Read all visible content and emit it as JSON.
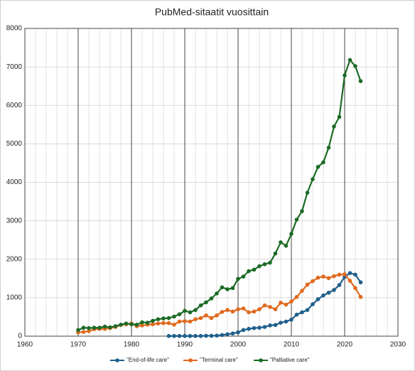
{
  "chart_data": {
    "type": "line",
    "title": "PubMed-sitaatit vuosittain",
    "xlim": [
      1960,
      2030
    ],
    "xticks": [
      1960,
      1970,
      1980,
      1990,
      2000,
      2010,
      2020,
      2030
    ],
    "ylim": [
      0,
      8000
    ],
    "yticks": [
      0,
      1000,
      2000,
      3000,
      4000,
      5000,
      6000,
      7000,
      8000
    ],
    "grid": true,
    "x_minor_grid_step": 2,
    "legend": "bottom",
    "series": [
      {
        "name": "\"End-of-life care\"",
        "color": "#1f5f8b",
        "x": [
          1987,
          1988,
          1989,
          1990,
          1991,
          1992,
          1993,
          1994,
          1995,
          1996,
          1997,
          1998,
          1999,
          2000,
          2001,
          2002,
          2003,
          2004,
          2005,
          2006,
          2007,
          2008,
          2009,
          2010,
          2011,
          2012,
          2013,
          2014,
          2015,
          2016,
          2017,
          2018,
          2019,
          2020,
          2021,
          2022,
          2023
        ],
        "values": [
          5,
          5,
          5,
          5,
          5,
          5,
          5,
          10,
          10,
          15,
          30,
          50,
          70,
          100,
          160,
          190,
          210,
          220,
          240,
          280,
          290,
          350,
          380,
          430,
          560,
          620,
          680,
          830,
          960,
          1060,
          1130,
          1200,
          1330,
          1540,
          1640,
          1600,
          1400
        ]
      },
      {
        "name": "\"Terminal care\"",
        "color": "#e0691c",
        "x": [
          1970,
          1971,
          1972,
          1973,
          1974,
          1975,
          1976,
          1977,
          1978,
          1979,
          1980,
          1981,
          1982,
          1983,
          1984,
          1985,
          1986,
          1987,
          1988,
          1989,
          1990,
          1991,
          1992,
          1993,
          1994,
          1995,
          1996,
          1997,
          1998,
          1999,
          2000,
          2001,
          2002,
          2003,
          2004,
          2005,
          2006,
          2007,
          2008,
          2009,
          2010,
          2011,
          2012,
          2013,
          2014,
          2015,
          2016,
          2017,
          2018,
          2019,
          2020,
          2021,
          2022,
          2023
        ],
        "values": [
          100,
          110,
          130,
          180,
          190,
          190,
          210,
          240,
          290,
          310,
          330,
          260,
          280,
          300,
          310,
          330,
          340,
          340,
          300,
          380,
          390,
          380,
          440,
          470,
          540,
          470,
          540,
          630,
          680,
          640,
          700,
          720,
          620,
          640,
          700,
          800,
          760,
          700,
          870,
          820,
          900,
          1020,
          1180,
          1340,
          1430,
          1520,
          1550,
          1510,
          1560,
          1600,
          1610,
          1440,
          1250,
          1020
        ]
      },
      {
        "name": "\"Palliative care\"",
        "color": "#1b6b26",
        "x": [
          1970,
          1971,
          1972,
          1973,
          1974,
          1975,
          1976,
          1977,
          1978,
          1979,
          1980,
          1981,
          1982,
          1983,
          1984,
          1985,
          1986,
          1987,
          1988,
          1989,
          1990,
          1991,
          1992,
          1993,
          1994,
          1995,
          1996,
          1997,
          1998,
          1999,
          2000,
          2001,
          2002,
          2003,
          2004,
          2005,
          2006,
          2007,
          2008,
          2009,
          2010,
          2011,
          2012,
          2013,
          2014,
          2015,
          2016,
          2017,
          2018,
          2019,
          2020,
          2021,
          2022,
          2023
        ],
        "values": [
          160,
          220,
          210,
          220,
          220,
          250,
          230,
          260,
          300,
          330,
          310,
          300,
          360,
          350,
          400,
          440,
          460,
          470,
          510,
          570,
          660,
          620,
          680,
          800,
          880,
          980,
          1110,
          1270,
          1220,
          1250,
          1490,
          1550,
          1690,
          1730,
          1820,
          1870,
          1910,
          2150,
          2440,
          2350,
          2660,
          3030,
          3250,
          3730,
          4080,
          4400,
          4520,
          4900,
          5450,
          5700,
          6780,
          7180,
          7020,
          6630
        ]
      }
    ]
  }
}
